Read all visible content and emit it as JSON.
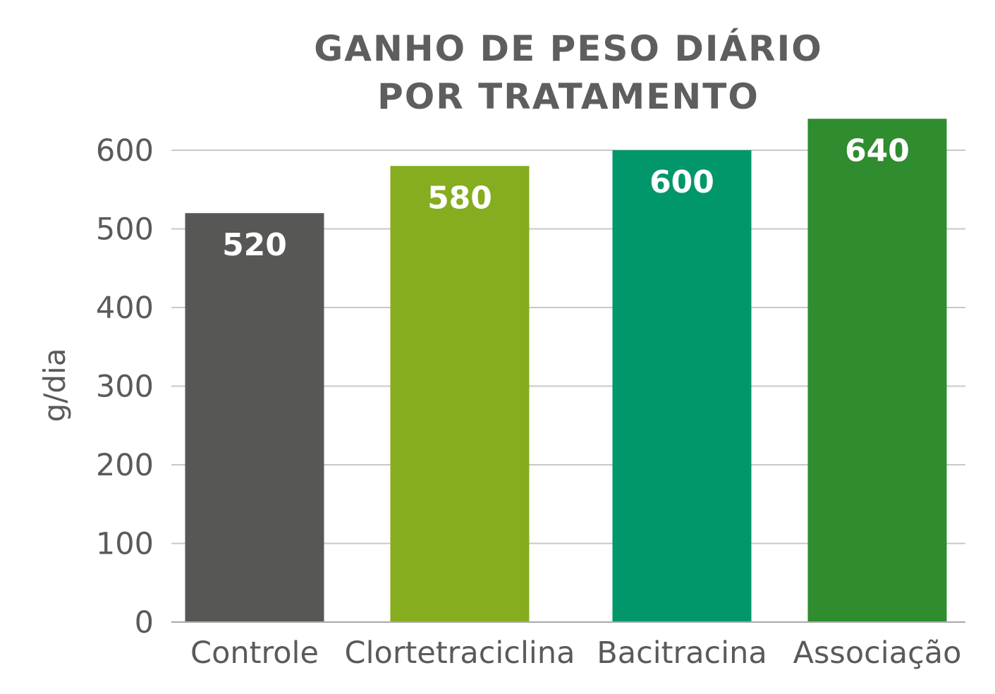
{
  "chart_data": {
    "type": "bar",
    "title": [
      "GANHO DE PESO DIÁRIO",
      "POR TRATAMENTO"
    ],
    "xlabel": "",
    "ylabel": "g/dia",
    "categories": [
      "Controle",
      "Clortetraciclina",
      "Bacitracina",
      "Associação"
    ],
    "values": [
      520,
      580,
      600,
      640
    ],
    "value_labels": [
      "520",
      "580",
      "600",
      "640"
    ],
    "colors": [
      "#575756",
      "#86ac1f",
      "#02976b",
      "#2f8c2f"
    ],
    "ylim": [
      0,
      640
    ],
    "yticks": [
      0,
      100,
      200,
      300,
      400,
      500,
      600
    ],
    "grid": true,
    "legend": "none"
  }
}
